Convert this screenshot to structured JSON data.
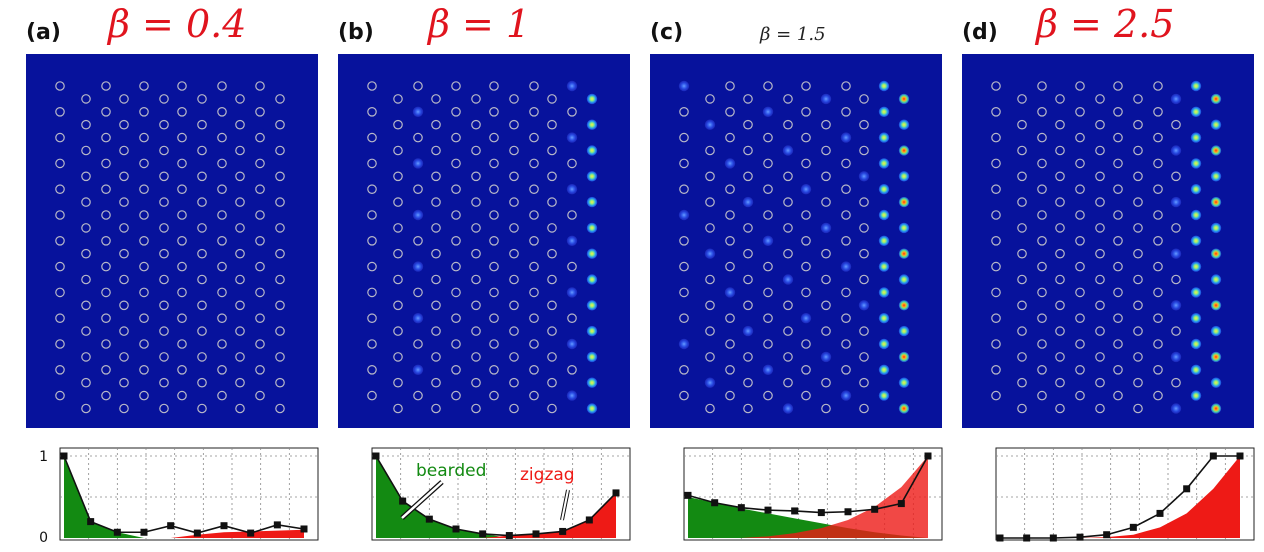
{
  "panels": [
    {
      "label": "(a)",
      "beta_text": "β = 0.4",
      "beta": 0.4,
      "profile": [
        1.0,
        0.2,
        0.07,
        0.07,
        0.15,
        0.06,
        0.15,
        0.06,
        0.16,
        0.11
      ],
      "bearded_end": 3,
      "zigzag_start": 4
    },
    {
      "label": "(b)",
      "beta_text": "β = 1",
      "beta": 1,
      "profile": [
        1.0,
        0.45,
        0.23,
        0.11,
        0.05,
        0.03,
        0.05,
        0.08,
        0.22,
        0.55
      ],
      "bearded_end": 5,
      "zigzag_start": 5,
      "annotations": {
        "bearded": "bearded",
        "zigzag": "zigzag"
      }
    },
    {
      "label": "(c)",
      "beta_text": "β = 1.5",
      "beta": 1.5,
      "profile": [
        0.52,
        0.43,
        0.37,
        0.34,
        0.33,
        0.31,
        0.32,
        0.35,
        0.42,
        1.0
      ],
      "bearded_end": 9,
      "zigzag_start": 0
    },
    {
      "label": "(d)",
      "beta_text": "β = 2.5",
      "beta": 2.5,
      "profile": [
        0.0,
        0.0,
        0.0,
        0.01,
        0.04,
        0.13,
        0.3,
        0.6,
        1.0,
        1.0
      ],
      "bearded_end": 0,
      "zigzag_start": 3
    }
  ],
  "axis": {
    "y_ticks": [
      "1",
      "0"
    ]
  },
  "colors": {
    "background": "#07129c",
    "ring": "#b8b8c8",
    "bearded_fill": "#138a12",
    "zigzag_fill": "#ee1a16",
    "marker": "#111111"
  }
}
